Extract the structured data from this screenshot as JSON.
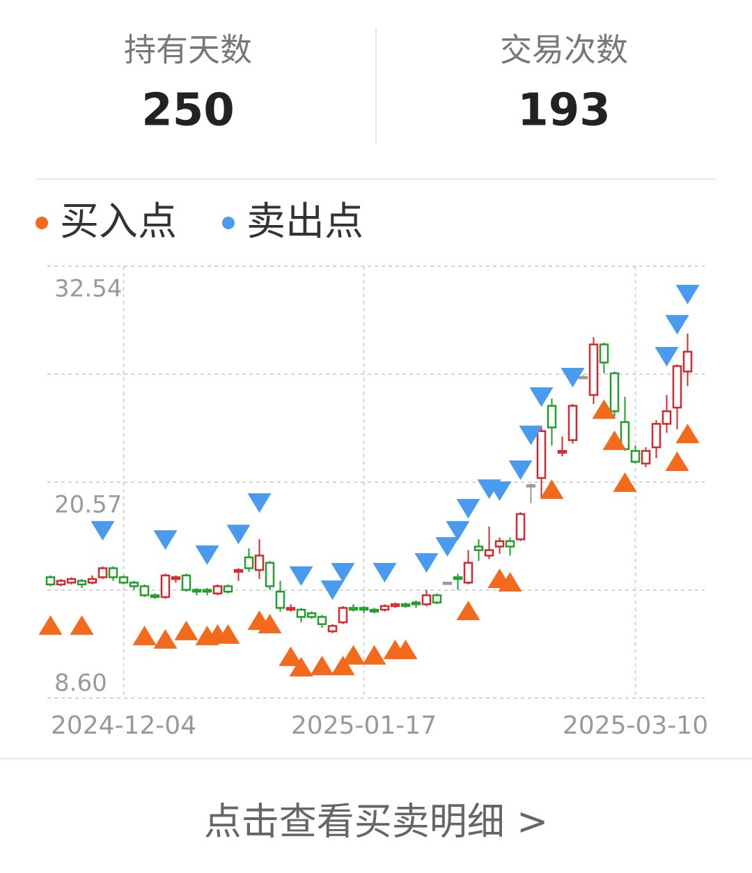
{
  "stats": [
    {
      "label": "持有天数",
      "value": 250
    },
    {
      "label": "交易次数",
      "value": 193
    }
  ],
  "chart_data": {
    "type": "candlestick",
    "categories": [
      null,
      null,
      null,
      null,
      null,
      null,
      null,
      "2024-12-04",
      null,
      null,
      null,
      null,
      null,
      null,
      null,
      null,
      null,
      null,
      null,
      null,
      null,
      null,
      null,
      null,
      null,
      null,
      null,
      null,
      null,
      null,
      "2025-01-17",
      null,
      null,
      null,
      null,
      null,
      null,
      null,
      null,
      null,
      null,
      null,
      null,
      null,
      null,
      null,
      null,
      null,
      null,
      null,
      null,
      null,
      null,
      null,
      null,
      null,
      "2025-03-10",
      null,
      null,
      null,
      null,
      null
    ],
    "open": [
      15.3,
      14.9,
      15.0,
      15.1,
      15.0,
      15.3,
      15.8,
      15.3,
      15.0,
      14.8,
      14.3,
      14.2,
      15.2,
      15.4,
      14.6,
      14.6,
      14.4,
      14.8,
      15.6,
      16.4,
      15.7,
      16.1,
      14.5,
      13.5,
      13.5,
      13.3,
      13.1,
      12.3,
      12.8,
      13.6,
      13.6,
      13.5,
      13.5,
      13.7,
      13.8,
      13.9,
      13.8,
      14.3,
      15.0,
      15.3,
      15.0,
      17.0,
      16.5,
      17.0,
      17.3,
      17.4,
      20.4,
      20.8,
      24.8,
      22.2,
      22.9,
      26.4,
      25.4,
      28.2,
      26.6,
      23.9,
      22.3,
      21.6,
      22.5,
      23.8,
      24.7,
      26.7
    ],
    "close": [
      14.9,
      15.1,
      15.2,
      14.9,
      15.2,
      15.8,
      15.3,
      15.0,
      14.8,
      14.3,
      14.2,
      15.4,
      15.3,
      14.6,
      14.5,
      14.5,
      14.8,
      14.5,
      15.7,
      15.8,
      16.5,
      14.8,
      13.6,
      13.6,
      13.1,
      13.1,
      12.7,
      12.6,
      13.6,
      13.5,
      13.5,
      13.4,
      13.7,
      13.8,
      13.7,
      13.8,
      14.3,
      13.9,
      15.0,
      15.2,
      16.1,
      16.8,
      16.8,
      17.3,
      17.0,
      18.8,
      20.4,
      23.4,
      23.6,
      22.3,
      24.8,
      26.4,
      28.2,
      27.2,
      24.5,
      22.4,
      21.7,
      22.3,
      23.8,
      24.5,
      27.0,
      27.8
    ],
    "high": [
      15.4,
      15.2,
      15.3,
      15.2,
      15.4,
      15.9,
      15.9,
      15.4,
      15.1,
      14.9,
      14.4,
      15.5,
      15.4,
      15.5,
      14.7,
      14.7,
      14.9,
      14.9,
      15.8,
      16.9,
      17.4,
      16.2,
      15.1,
      13.8,
      13.6,
      13.4,
      13.2,
      12.7,
      13.7,
      13.8,
      13.7,
      13.6,
      13.8,
      13.9,
      13.9,
      14.0,
      14.6,
      14.4,
      15.0,
      15.5,
      16.8,
      17.4,
      18.1,
      17.5,
      17.5,
      18.9,
      20.5,
      23.6,
      25.2,
      23.1,
      24.9,
      26.5,
      28.6,
      28.3,
      26.7,
      25.3,
      22.6,
      22.5,
      24.0,
      25.4,
      27.1,
      28.8
    ],
    "low": [
      14.8,
      14.8,
      14.9,
      14.7,
      14.9,
      15.2,
      15.1,
      14.9,
      14.6,
      14.2,
      14.1,
      14.1,
      15.0,
      14.5,
      14.3,
      14.3,
      14.3,
      14.4,
      15.1,
      15.6,
      15.2,
      14.6,
      13.4,
      13.4,
      12.8,
      13.0,
      12.5,
      12.2,
      12.7,
      13.4,
      13.3,
      13.3,
      13.4,
      13.6,
      13.6,
      13.6,
      13.7,
      13.8,
      14.9,
      14.6,
      14.9,
      16.2,
      16.3,
      16.6,
      16.5,
      17.3,
      19.4,
      19.7,
      22.6,
      22.0,
      22.7,
      26.3,
      24.9,
      26.6,
      24.2,
      22.3,
      21.6,
      21.4,
      21.9,
      23.3,
      23.5,
      25.9
    ],
    "up_color": "#d9262c",
    "down_color": "#1f9e2a",
    "flat_color": "#999999",
    "markers": [
      {
        "name": "买入点",
        "color": "#f36a1c",
        "shape": "triangle-up",
        "x": [
          0,
          3,
          9,
          11,
          13,
          15,
          16,
          17,
          20,
          21,
          23,
          24,
          26,
          28,
          29,
          31,
          33,
          34,
          40,
          43,
          44,
          48,
          53,
          54,
          55,
          60,
          61
        ],
        "values": [
          12.65,
          12.65,
          12.07,
          11.88,
          12.35,
          12.07,
          12.15,
          12.15,
          12.92,
          12.73,
          10.92,
          10.34,
          10.41,
          10.41,
          11.0,
          11.0,
          11.3,
          11.3,
          13.46,
          15.24,
          15.05,
          20.18,
          24.62,
          22.89,
          20.57,
          21.73,
          23.27
        ]
      },
      {
        "name": "卖出点",
        "color": "#4a9af0",
        "shape": "triangle-down",
        "x": [
          5,
          11,
          15,
          18,
          20,
          24,
          27,
          28,
          32,
          36,
          38,
          39,
          40,
          42,
          43,
          45,
          46,
          47,
          50,
          59,
          60,
          61
        ],
        "values": [
          17.87,
          17.36,
          16.52,
          17.67,
          19.41,
          15.36,
          14.58,
          15.55,
          15.55,
          16.09,
          16.98,
          17.87,
          19.1,
          20.18,
          20.07,
          21.23,
          23.16,
          25.28,
          26.36,
          27.52,
          29.29,
          30.96
        ]
      }
    ],
    "ylim": [
      8.6,
      32.54
    ],
    "yticks": [
      {
        "value": 8.6,
        "label": "8.60"
      },
      20.57,
      32.54
    ],
    "grid": true
  },
  "button": {
    "label": "点击查看买卖明细 >"
  }
}
